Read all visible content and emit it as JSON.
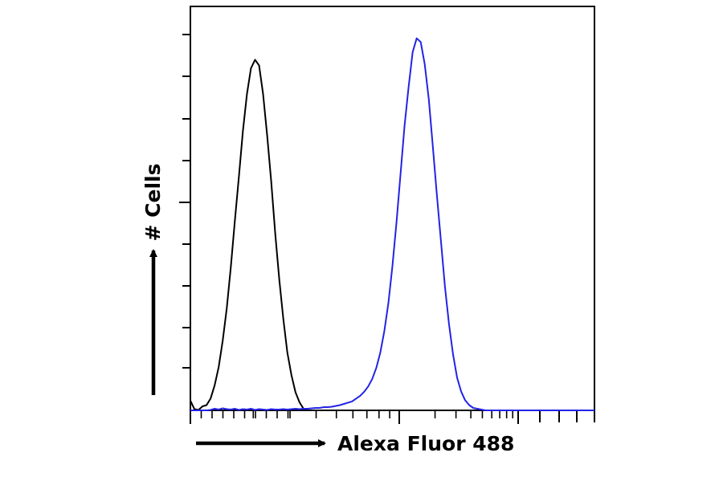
{
  "chart_data": {
    "type": "line",
    "title": "",
    "xlabel": "Alexa Fluor 488",
    "ylabel": "# Cells",
    "x_scale": "log",
    "xlim": [
      0,
      1
    ],
    "ylim": [
      0,
      1
    ],
    "grid": false,
    "legend": "none",
    "series": [
      {
        "color": "#000000",
        "x": [
          0.0,
          0.01,
          0.02,
          0.03,
          0.04,
          0.05,
          0.06,
          0.07,
          0.08,
          0.09,
          0.1,
          0.11,
          0.12,
          0.13,
          0.14,
          0.15,
          0.16,
          0.17,
          0.18,
          0.19,
          0.2,
          0.21,
          0.22,
          0.23,
          0.24,
          0.25,
          0.26,
          0.27,
          0.28,
          0.29,
          0.3,
          0.31,
          0.32,
          0.33,
          0.34,
          0.35,
          0.36,
          0.37,
          0.38,
          0.39,
          0.4,
          0.41,
          0.42,
          0.43,
          0.44,
          0.45,
          0.46,
          0.47,
          0.48,
          0.49,
          0.5,
          0.51,
          0.52,
          0.53,
          0.54,
          0.55,
          0.56,
          0.57,
          0.58,
          0.59,
          0.6,
          0.61,
          0.62,
          0.63,
          0.64,
          0.65,
          0.66,
          0.67,
          0.68,
          0.69,
          0.7,
          0.71,
          0.72,
          0.73,
          0.74,
          0.75,
          0.76,
          0.77,
          0.78,
          0.79,
          0.8,
          0.81,
          0.82,
          0.83,
          0.84,
          0.85,
          0.86,
          0.87,
          0.88,
          0.89,
          0.9,
          0.91,
          0.92,
          0.93,
          0.94,
          0.95,
          0.96,
          0.97,
          0.98,
          0.99,
          1.0
        ],
        "y": [
          0.024,
          0.003,
          0.001,
          0.01,
          0.013,
          0.029,
          0.062,
          0.107,
          0.172,
          0.253,
          0.354,
          0.468,
          0.579,
          0.692,
          0.783,
          0.847,
          0.868,
          0.854,
          0.783,
          0.68,
          0.567,
          0.438,
          0.323,
          0.226,
          0.143,
          0.087,
          0.045,
          0.02,
          0.004,
          0.0,
          0.0,
          0.0,
          0.0,
          0.0,
          0.0,
          0.0,
          0.0,
          0.0,
          0.0,
          0.0,
          0.0,
          0.0,
          0.0,
          0.0,
          0.0,
          0.0,
          0.0,
          0.0,
          0.0,
          0.0,
          0.0,
          0.0,
          0.0,
          0.0,
          0.0,
          0.0,
          0.0,
          0.0,
          0.0,
          0.0,
          0.0,
          0.0,
          0.0,
          0.0,
          0.0,
          0.0,
          0.0,
          0.0,
          0.0,
          0.0,
          0.0,
          0.0,
          0.0,
          0.0,
          0.0,
          0.0,
          0.0,
          0.0,
          0.0,
          0.0,
          0.0,
          0.0,
          0.0,
          0.0,
          0.0,
          0.0,
          0.0,
          0.0,
          0.0,
          0.0,
          0.0,
          0.0,
          0.0,
          0.0,
          0.0,
          0.0,
          0.0,
          0.0,
          0.0,
          0.0,
          0.0
        ]
      },
      {
        "color": "#2323e6",
        "x": [
          0.0,
          0.01,
          0.02,
          0.03,
          0.04,
          0.05,
          0.06,
          0.07,
          0.08,
          0.09,
          0.1,
          0.11,
          0.12,
          0.13,
          0.14,
          0.15,
          0.16,
          0.17,
          0.18,
          0.19,
          0.2,
          0.21,
          0.22,
          0.23,
          0.24,
          0.25,
          0.26,
          0.27,
          0.28,
          0.29,
          0.3,
          0.31,
          0.32,
          0.33,
          0.34,
          0.35,
          0.36,
          0.37,
          0.38,
          0.39,
          0.4,
          0.41,
          0.42,
          0.43,
          0.44,
          0.45,
          0.46,
          0.47,
          0.48,
          0.49,
          0.5,
          0.51,
          0.52,
          0.53,
          0.54,
          0.55,
          0.56,
          0.57,
          0.58,
          0.59,
          0.6,
          0.61,
          0.62,
          0.63,
          0.64,
          0.65,
          0.66,
          0.67,
          0.68,
          0.69,
          0.7,
          0.71,
          0.72,
          0.73,
          0.74,
          0.75,
          0.76,
          0.77,
          0.78,
          0.79,
          0.8,
          0.81,
          0.82,
          0.83,
          0.84,
          0.85,
          0.86,
          0.87,
          0.88,
          0.89,
          0.9,
          0.91,
          0.92,
          0.93,
          0.94,
          0.95,
          0.96,
          0.97,
          0.98,
          0.99,
          1.0
        ],
        "y": [
          0.0,
          0.0,
          0.0,
          0.0,
          0.0,
          0.001,
          0.004,
          0.002,
          0.005,
          0.003,
          0.002,
          0.004,
          0.001,
          0.003,
          0.002,
          0.004,
          0.001,
          0.003,
          0.002,
          0.001,
          0.003,
          0.002,
          0.002,
          0.003,
          0.002,
          0.003,
          0.004,
          0.003,
          0.004,
          0.004,
          0.005,
          0.006,
          0.006,
          0.008,
          0.008,
          0.009,
          0.011,
          0.013,
          0.016,
          0.019,
          0.022,
          0.029,
          0.036,
          0.046,
          0.059,
          0.078,
          0.105,
          0.143,
          0.196,
          0.266,
          0.357,
          0.464,
          0.585,
          0.705,
          0.8,
          0.887,
          0.921,
          0.912,
          0.857,
          0.77,
          0.653,
          0.534,
          0.419,
          0.306,
          0.214,
          0.138,
          0.081,
          0.047,
          0.025,
          0.013,
          0.006,
          0.004,
          0.002,
          0.0,
          0.0,
          0.0,
          0.0,
          0.0,
          0.0,
          0.0,
          0.0,
          0.0,
          0.0,
          0.0,
          0.0,
          0.0,
          0.0,
          0.0,
          0.0,
          0.0,
          0.0,
          0.0,
          0.0,
          0.0,
          0.0,
          0.0,
          0.0,
          0.0,
          0.0,
          0.0,
          0.0
        ]
      }
    ]
  }
}
